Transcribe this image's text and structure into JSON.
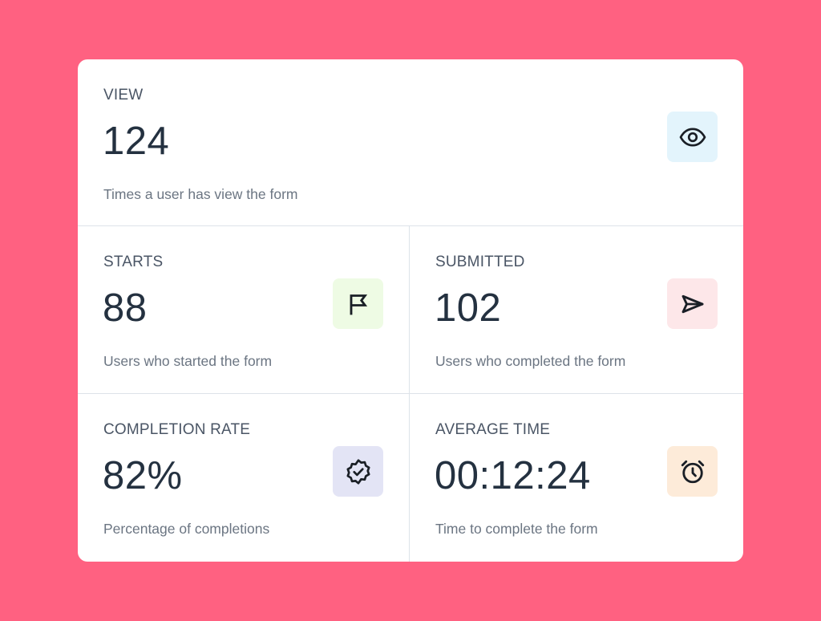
{
  "metrics": {
    "view": {
      "label": "VIEW",
      "value": "124",
      "description": "Times a user has view the form",
      "icon": "eye-icon",
      "icon_bg": "#E3F4FC"
    },
    "starts": {
      "label": "STARTS",
      "value": "88",
      "description": "Users who started the form",
      "icon": "flag-icon",
      "icon_bg": "#EEFBE4"
    },
    "submitted": {
      "label": "SUBMITTED",
      "value": "102",
      "description": "Users who completed the form",
      "icon": "send-icon",
      "icon_bg": "#FDE7E9"
    },
    "completion_rate": {
      "label": "COMPLETION RATE",
      "value": "82%",
      "description": "Percentage of completions",
      "icon": "badge-check-icon",
      "icon_bg": "#E3E4F5"
    },
    "average_time": {
      "label": "AVERAGE TIME",
      "value": "00:12:24",
      "description": "Time to complete the form",
      "icon": "alarm-clock-icon",
      "icon_bg": "#FDEBD9"
    }
  },
  "colors": {
    "background": "#FF6181",
    "card": "#FFFFFF",
    "value_text": "#243140",
    "label_text": "#4A5565",
    "desc_text": "#6B7582",
    "icon_stroke": "#1A1F26"
  }
}
